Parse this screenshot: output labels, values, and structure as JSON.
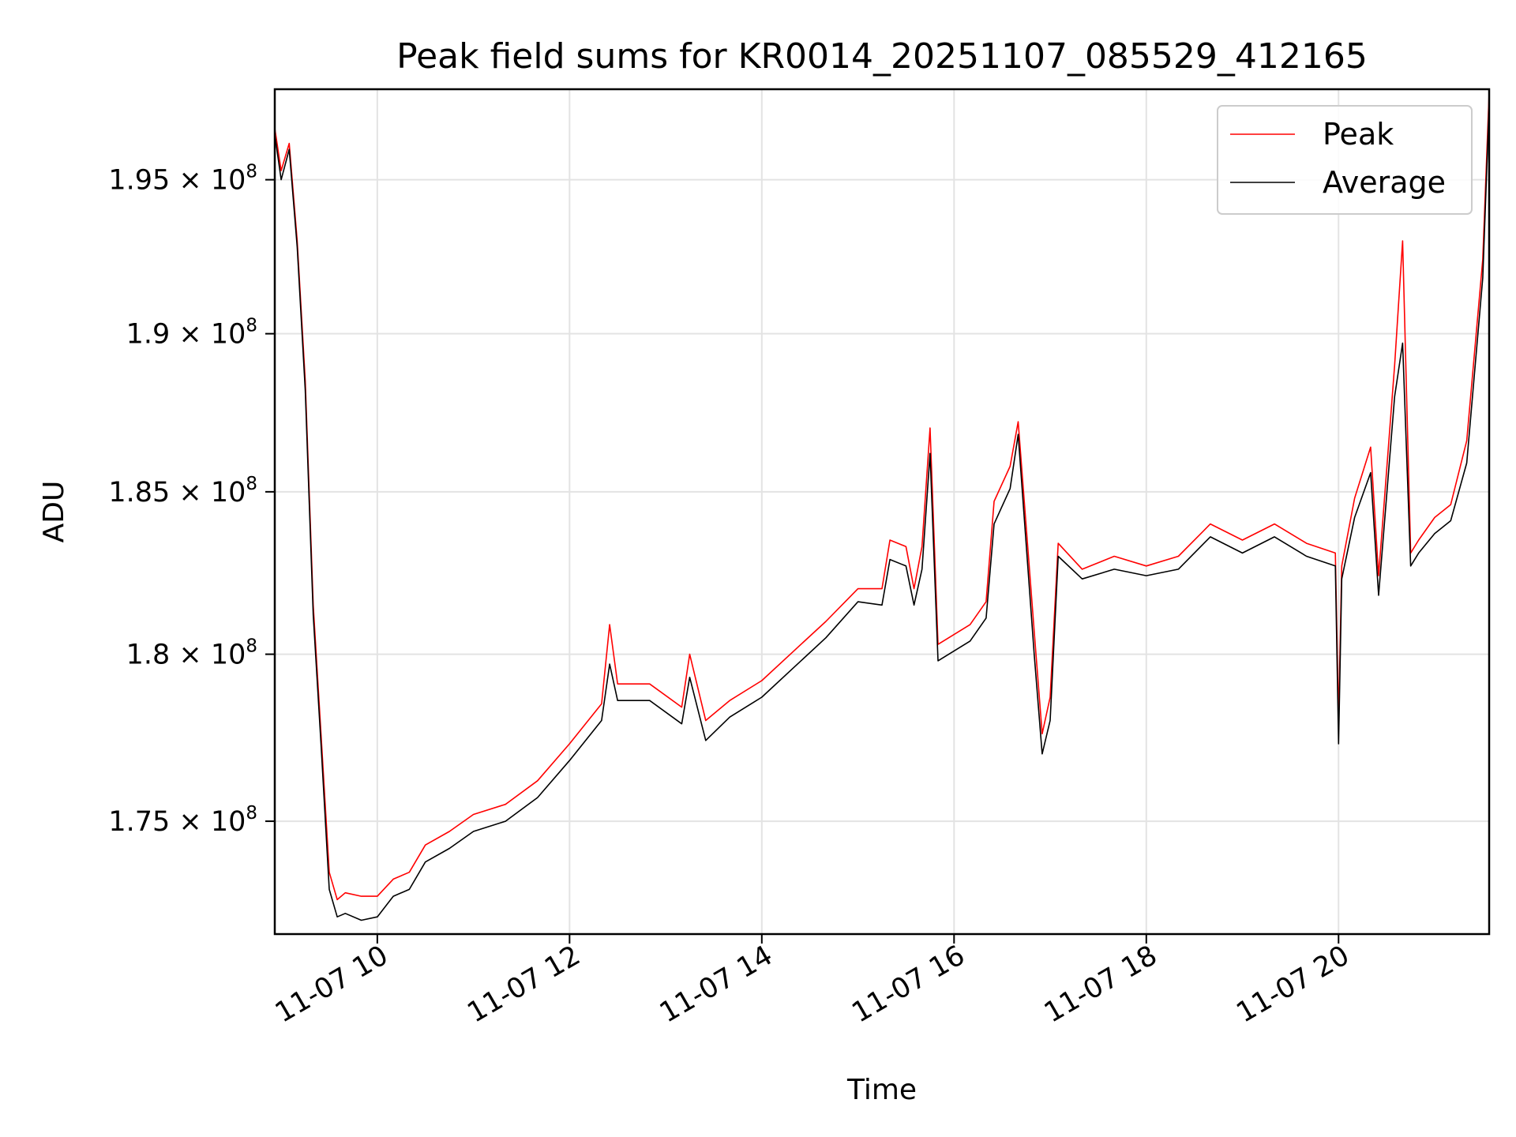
{
  "chart_data": {
    "type": "line",
    "title": "Peak field sums for KR0014_20251107_085529_412165",
    "xlabel": "Time",
    "ylabel": "ADU",
    "xlim": [
      "2025-11-07 08:56",
      "2025-11-07 21:34"
    ],
    "ylim": [
      171700000,
      198000000
    ],
    "y_scale": "log",
    "grid": true,
    "legend_position": "top-right",
    "x_ticks": [
      "2025-11-07 10:00",
      "2025-11-07 12:00",
      "2025-11-07 14:00",
      "2025-11-07 16:00",
      "2025-11-07 18:00",
      "2025-11-07 20:00"
    ],
    "x_tick_labels": [
      "11-07 10",
      "11-07 12",
      "11-07 14",
      "11-07 16",
      "11-07 18",
      "11-07 20"
    ],
    "y_ticks": [
      175000000,
      180000000,
      185000000,
      190000000,
      195000000
    ],
    "y_tick_labels": [
      {
        "mantissa": "1.75",
        "exponent": "8"
      },
      {
        "mantissa": "1.8",
        "exponent": "8"
      },
      {
        "mantissa": "1.85",
        "exponent": "8"
      },
      {
        "mantissa": "1.9",
        "exponent": "8"
      },
      {
        "mantissa": "1.95",
        "exponent": "8"
      }
    ],
    "x": [
      "2025-11-07 08:56",
      "2025-11-07 09:00",
      "2025-11-07 09:05",
      "2025-11-07 09:10",
      "2025-11-07 09:15",
      "2025-11-07 09:20",
      "2025-11-07 09:25",
      "2025-11-07 09:30",
      "2025-11-07 09:35",
      "2025-11-07 09:40",
      "2025-11-07 09:50",
      "2025-11-07 10:00",
      "2025-11-07 10:10",
      "2025-11-07 10:20",
      "2025-11-07 10:30",
      "2025-11-07 10:45",
      "2025-11-07 11:00",
      "2025-11-07 11:20",
      "2025-11-07 11:40",
      "2025-11-07 12:00",
      "2025-11-07 12:20",
      "2025-11-07 12:25",
      "2025-11-07 12:30",
      "2025-11-07 12:50",
      "2025-11-07 13:10",
      "2025-11-07 13:15",
      "2025-11-07 13:25",
      "2025-11-07 13:40",
      "2025-11-07 14:00",
      "2025-11-07 14:20",
      "2025-11-07 14:40",
      "2025-11-07 15:00",
      "2025-11-07 15:15",
      "2025-11-07 15:20",
      "2025-11-07 15:30",
      "2025-11-07 15:35",
      "2025-11-07 15:40",
      "2025-11-07 15:45",
      "2025-11-07 15:50",
      "2025-11-07 16:10",
      "2025-11-07 16:20",
      "2025-11-07 16:25",
      "2025-11-07 16:35",
      "2025-11-07 16:40",
      "2025-11-07 16:50",
      "2025-11-07 16:55",
      "2025-11-07 17:00",
      "2025-11-07 17:05",
      "2025-11-07 17:20",
      "2025-11-07 17:40",
      "2025-11-07 18:00",
      "2025-11-07 18:20",
      "2025-11-07 18:40",
      "2025-11-07 19:00",
      "2025-11-07 19:20",
      "2025-11-07 19:40",
      "2025-11-07 19:58",
      "2025-11-07 20:00",
      "2025-11-07 20:02",
      "2025-11-07 20:10",
      "2025-11-07 20:20",
      "2025-11-07 20:25",
      "2025-11-07 20:35",
      "2025-11-07 20:40",
      "2025-11-07 20:45",
      "2025-11-07 20:50",
      "2025-11-07 21:00",
      "2025-11-07 21:10",
      "2025-11-07 21:20",
      "2025-11-07 21:30",
      "2025-11-07 21:34"
    ],
    "series": [
      {
        "name": "Peak",
        "color": "#ff0000",
        "values": [
          196700000,
          195300000,
          196200000,
          193000000,
          188500000,
          181500000,
          177500000,
          173500000,
          172700000,
          172900000,
          172800000,
          172800000,
          173300000,
          173500000,
          174300000,
          174700000,
          175200000,
          175500000,
          176200000,
          177300000,
          178500000,
          180900000,
          179100000,
          179100000,
          178400000,
          180000000,
          178000000,
          178600000,
          179200000,
          180100000,
          181000000,
          182000000,
          182000000,
          183500000,
          183300000,
          182000000,
          183300000,
          187000000,
          180300000,
          180900000,
          181600000,
          184700000,
          185800000,
          187200000,
          180700000,
          177600000,
          178700000,
          183400000,
          182600000,
          183000000,
          182700000,
          183000000,
          184000000,
          183500000,
          184000000,
          183400000,
          183100000,
          178000000,
          182700000,
          184800000,
          186400000,
          182400000,
          189000000,
          193000000,
          183100000,
          183500000,
          184200000,
          184600000,
          186600000,
          192400000,
          197900000
        ]
      },
      {
        "name": "Average",
        "color": "#000000",
        "values": [
          196500000,
          195000000,
          196000000,
          192800000,
          188200000,
          181200000,
          177200000,
          173000000,
          172200000,
          172300000,
          172100000,
          172200000,
          172800000,
          173000000,
          173800000,
          174200000,
          174700000,
          175000000,
          175700000,
          176800000,
          178000000,
          179700000,
          178600000,
          178600000,
          177900000,
          179300000,
          177400000,
          178100000,
          178700000,
          179600000,
          180500000,
          181600000,
          181500000,
          182900000,
          182700000,
          181500000,
          182600000,
          186200000,
          179800000,
          180400000,
          181100000,
          184000000,
          185100000,
          186800000,
          180000000,
          177000000,
          178000000,
          183000000,
          182300000,
          182600000,
          182400000,
          182600000,
          183600000,
          183100000,
          183600000,
          183000000,
          182700000,
          177300000,
          182300000,
          184200000,
          185600000,
          181800000,
          188000000,
          189700000,
          182700000,
          183100000,
          183700000,
          184100000,
          185900000,
          191800000,
          197500000
        ]
      }
    ]
  }
}
